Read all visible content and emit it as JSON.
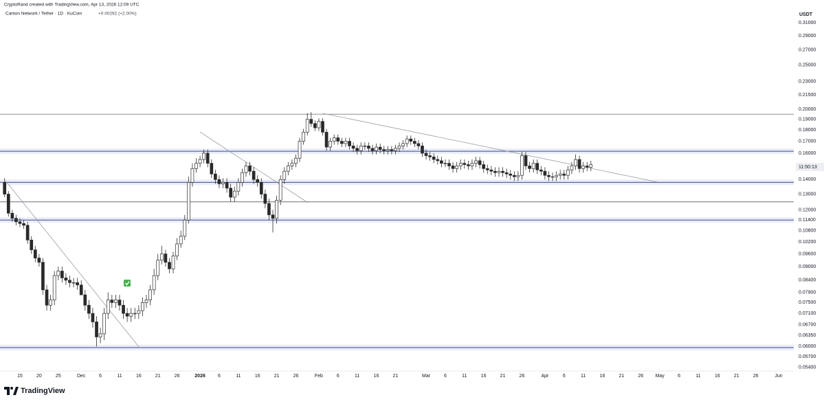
{
  "chart_data": {
    "type": "candlestick",
    "attribution": "CryptoRand created with TradingView.com, Apr 13, 2026 12:09 UTC",
    "title": "Canton Network / Tether · 1D · KuCoin",
    "change": "+0.00292 (+2.00%)",
    "y_label": "USDT",
    "countdown": "11:50:13",
    "brand": "TradingView",
    "log_scale": true,
    "ylim": [
      0.053,
      0.348
    ],
    "yticks": [
      {
        "value": 0.31,
        "label": "0.31000"
      },
      {
        "value": 0.29,
        "label": "0.29000"
      },
      {
        "value": 0.27,
        "label": "0.27000"
      },
      {
        "value": 0.25,
        "label": "0.25000"
      },
      {
        "value": 0.23,
        "label": "0.23000"
      },
      {
        "value": 0.215,
        "label": "0.21500"
      },
      {
        "value": 0.2,
        "label": "0.20000"
      },
      {
        "value": 0.19,
        "label": "0.19000"
      },
      {
        "value": 0.18,
        "label": "0.18000"
      },
      {
        "value": 0.17,
        "label": "0.17000"
      },
      {
        "value": 0.16,
        "label": "0.16000"
      },
      {
        "value": 0.14,
        "label": "0.14000"
      },
      {
        "value": 0.13,
        "label": "0.13000"
      },
      {
        "value": 0.12,
        "label": "0.12000"
      },
      {
        "value": 0.114,
        "label": "0.11400"
      },
      {
        "value": 0.108,
        "label": "0.10800"
      },
      {
        "value": 0.102,
        "label": "0.10200"
      },
      {
        "value": 0.096,
        "label": "0.09600"
      },
      {
        "value": 0.09,
        "label": "0.09000"
      },
      {
        "value": 0.084,
        "label": "0.08400"
      },
      {
        "value": 0.079,
        "label": "0.07900"
      },
      {
        "value": 0.075,
        "label": "0.07500"
      },
      {
        "value": 0.071,
        "label": "0.07100"
      },
      {
        "value": 0.067,
        "label": "0.06700"
      },
      {
        "value": 0.0635,
        "label": "0.06350"
      },
      {
        "value": 0.06,
        "label": "0.06000"
      },
      {
        "value": 0.057,
        "label": "0.05700"
      },
      {
        "value": 0.054,
        "label": "0.05400"
      }
    ],
    "up_color": "#ffffff",
    "down_color": "#2a2a2a",
    "levels": [
      {
        "value": 0.195,
        "color": "#8a8d96",
        "shaded": false
      },
      {
        "value": 0.1616,
        "color": "#3c4690",
        "shaded": true
      },
      {
        "value": 0.138,
        "color": "#3c4690",
        "shaded": true
      },
      {
        "value": 0.125,
        "color": "#6b6e78",
        "shaded": false
      },
      {
        "value": 0.114,
        "color": "#3c4690",
        "shaded": true
      },
      {
        "value": 0.0597,
        "color": "#3c4690",
        "shaded": true
      }
    ],
    "categories": [
      null,
      null,
      null,
      null,
      "15",
      null,
      null,
      null,
      null,
      "20",
      null,
      null,
      null,
      null,
      "25",
      null,
      null,
      null,
      null,
      null,
      "Dec",
      null,
      null,
      null,
      null,
      "6",
      null,
      null,
      null,
      null,
      "11",
      null,
      null,
      null,
      null,
      "16",
      null,
      null,
      null,
      null,
      "21",
      null,
      null,
      null,
      null,
      "26",
      null,
      null,
      null,
      null,
      null,
      "2026",
      null,
      null,
      null,
      null,
      "6",
      null,
      null,
      null,
      null,
      "11",
      null,
      null,
      null,
      null,
      "16",
      null,
      null,
      null,
      null,
      "21",
      null,
      null,
      null,
      null,
      "26",
      null,
      null,
      null,
      null,
      null,
      "Feb",
      null,
      null,
      null,
      null,
      "6",
      null,
      null,
      null,
      null,
      "11",
      null,
      null,
      null,
      null,
      "16",
      null,
      null,
      null,
      null,
      "21",
      null,
      null,
      null,
      null,
      null,
      null,
      null,
      "Mar",
      null,
      null,
      null,
      null,
      "6",
      null,
      null,
      null,
      null,
      "11",
      null,
      null,
      null,
      null,
      "16",
      null,
      null,
      null,
      null,
      "21",
      null,
      null,
      null,
      null,
      "26",
      null,
      null,
      null,
      null,
      null,
      "Apr",
      null,
      null,
      null,
      null,
      "6",
      null,
      null,
      null,
      null,
      "11",
      null,
      null,
      null,
      null,
      "16",
      null,
      null,
      null,
      null,
      "21",
      null,
      null,
      null,
      null,
      "26",
      null,
      null,
      null,
      null,
      "May",
      null,
      null,
      null,
      null,
      "6",
      null,
      null,
      null,
      null,
      "11",
      null,
      null,
      null,
      null,
      "16",
      null,
      null,
      null,
      null,
      "21",
      null,
      null,
      null,
      null,
      "26",
      null,
      null,
      null,
      null,
      null,
      "Jun"
    ],
    "open": [
      0.138,
      0.13,
      0.118,
      0.115,
      0.113,
      0.112,
      0.111,
      0.103,
      0.098,
      0.094,
      0.092,
      0.08,
      0.074,
      0.076,
      0.086,
      0.088,
      0.085,
      0.084,
      0.083,
      0.083,
      0.082,
      0.078,
      0.074,
      0.071,
      0.068,
      0.063,
      0.064,
      0.071,
      0.076,
      0.075,
      0.076,
      0.074,
      0.071,
      0.07,
      0.071,
      0.071,
      0.072,
      0.075,
      0.076,
      0.08,
      0.086,
      0.093,
      0.096,
      0.092,
      0.089,
      0.095,
      0.101,
      0.105,
      0.114,
      0.138,
      0.148,
      0.152,
      0.155,
      0.16,
      0.152,
      0.144,
      0.14,
      0.137,
      0.138,
      0.134,
      0.128,
      0.132,
      0.138,
      0.145,
      0.15,
      0.146,
      0.14,
      0.138,
      0.13,
      0.124,
      0.117,
      0.115,
      0.126,
      0.14,
      0.146,
      0.15,
      0.152,
      0.156,
      0.17,
      0.178,
      0.19,
      0.186,
      0.182,
      0.188,
      0.178,
      0.165,
      0.17,
      0.173,
      0.17,
      0.168,
      0.17,
      0.166,
      0.164,
      0.162,
      0.166,
      0.166,
      0.164,
      0.162,
      0.165,
      0.163,
      0.162,
      0.163,
      0.162,
      0.164,
      0.166,
      0.168,
      0.172,
      0.17,
      0.168,
      0.166,
      0.16,
      0.158,
      0.157,
      0.155,
      0.154,
      0.152,
      0.152,
      0.15,
      0.148,
      0.15,
      0.152,
      0.151,
      0.15,
      0.152,
      0.154,
      0.151,
      0.148,
      0.147,
      0.146,
      0.145,
      0.146,
      0.145,
      0.144,
      0.143,
      0.142,
      0.143,
      0.158,
      0.15,
      0.148,
      0.152,
      0.147,
      0.146,
      0.143,
      0.142,
      0.142,
      0.143,
      0.144,
      0.143,
      0.147,
      0.15,
      0.155,
      0.148,
      0.15,
      0.149,
      null,
      null,
      null,
      null,
      null,
      null,
      null,
      null,
      null,
      null,
      null,
      null,
      null,
      null,
      null,
      null,
      null,
      null,
      null,
      null,
      null,
      null,
      null,
      null,
      null,
      null,
      null,
      null,
      null,
      null,
      null,
      null,
      null,
      null,
      null,
      null,
      null,
      null,
      null,
      null,
      null,
      null,
      null,
      null,
      null,
      null,
      null,
      null,
      null
    ],
    "high": [
      0.141,
      0.132,
      0.12,
      0.117,
      0.115,
      0.114,
      0.113,
      0.105,
      0.1,
      0.096,
      0.094,
      0.082,
      0.078,
      0.088,
      0.09,
      0.09,
      0.087,
      0.086,
      0.085,
      0.085,
      0.084,
      0.08,
      0.076,
      0.073,
      0.07,
      0.066,
      0.073,
      0.079,
      0.078,
      0.078,
      0.078,
      0.076,
      0.073,
      0.073,
      0.073,
      0.074,
      0.077,
      0.078,
      0.082,
      0.089,
      0.096,
      0.1,
      0.098,
      0.094,
      0.097,
      0.104,
      0.108,
      0.117,
      0.142,
      0.152,
      0.156,
      0.158,
      0.163,
      0.163,
      0.155,
      0.147,
      0.143,
      0.141,
      0.141,
      0.137,
      0.135,
      0.141,
      0.148,
      0.153,
      0.153,
      0.149,
      0.143,
      0.141,
      0.133,
      0.127,
      0.12,
      0.129,
      0.143,
      0.149,
      0.153,
      0.155,
      0.159,
      0.173,
      0.181,
      0.196,
      0.197,
      0.189,
      0.191,
      0.191,
      0.181,
      0.173,
      0.176,
      0.176,
      0.173,
      0.173,
      0.173,
      0.169,
      0.167,
      0.169,
      0.169,
      0.169,
      0.167,
      0.168,
      0.168,
      0.166,
      0.166,
      0.166,
      0.167,
      0.169,
      0.171,
      0.175,
      0.175,
      0.173,
      0.171,
      0.169,
      0.163,
      0.161,
      0.16,
      0.158,
      0.157,
      0.155,
      0.155,
      0.153,
      0.153,
      0.155,
      0.155,
      0.154,
      0.155,
      0.157,
      0.157,
      0.154,
      0.151,
      0.15,
      0.149,
      0.149,
      0.149,
      0.148,
      0.147,
      0.146,
      0.146,
      0.161,
      0.161,
      0.153,
      0.155,
      0.155,
      0.15,
      0.149,
      0.146,
      0.145,
      0.146,
      0.147,
      0.147,
      0.15,
      0.153,
      0.159,
      0.158,
      0.153,
      0.153,
      0.154,
      null,
      null,
      null,
      null,
      null,
      null,
      null,
      null,
      null,
      null,
      null,
      null,
      null,
      null,
      null,
      null,
      null,
      null,
      null,
      null,
      null,
      null,
      null,
      null,
      null,
      null,
      null,
      null,
      null,
      null,
      null,
      null,
      null,
      null,
      null,
      null,
      null,
      null,
      null,
      null,
      null,
      null,
      null,
      null,
      null,
      null,
      null,
      null,
      null
    ],
    "low": [
      0.128,
      0.116,
      0.113,
      0.111,
      0.11,
      0.109,
      0.101,
      0.096,
      0.092,
      0.09,
      0.078,
      0.072,
      0.072,
      0.074,
      0.084,
      0.083,
      0.082,
      0.081,
      0.081,
      0.08,
      0.08,
      0.072,
      0.069,
      0.066,
      0.06,
      0.061,
      0.062,
      0.069,
      0.073,
      0.073,
      0.072,
      0.069,
      0.068,
      0.068,
      0.069,
      0.069,
      0.07,
      0.073,
      0.074,
      0.078,
      0.084,
      0.091,
      0.09,
      0.087,
      0.087,
      0.093,
      0.099,
      0.103,
      0.112,
      0.135,
      0.145,
      0.149,
      0.152,
      0.149,
      0.141,
      0.137,
      0.134,
      0.134,
      0.131,
      0.125,
      0.125,
      0.129,
      0.135,
      0.142,
      0.143,
      0.137,
      0.135,
      0.127,
      0.121,
      0.114,
      0.107,
      0.112,
      0.123,
      0.137,
      0.143,
      0.147,
      0.149,
      0.153,
      0.167,
      0.175,
      0.183,
      0.179,
      0.179,
      0.175,
      0.162,
      0.162,
      0.167,
      0.167,
      0.165,
      0.165,
      0.163,
      0.161,
      0.159,
      0.159,
      0.163,
      0.161,
      0.159,
      0.159,
      0.16,
      0.159,
      0.159,
      0.159,
      0.159,
      0.161,
      0.163,
      0.165,
      0.167,
      0.165,
      0.163,
      0.157,
      0.155,
      0.154,
      0.152,
      0.151,
      0.149,
      0.149,
      0.147,
      0.145,
      0.145,
      0.147,
      0.148,
      0.147,
      0.147,
      0.149,
      0.148,
      0.145,
      0.144,
      0.143,
      0.142,
      0.142,
      0.142,
      0.141,
      0.14,
      0.139,
      0.139,
      0.14,
      0.147,
      0.145,
      0.145,
      0.144,
      0.143,
      0.14,
      0.139,
      0.139,
      0.139,
      0.14,
      0.14,
      0.14,
      0.144,
      0.147,
      0.145,
      0.145,
      0.146,
      0.146,
      null,
      null,
      null,
      null,
      null,
      null,
      null,
      null,
      null,
      null,
      null,
      null,
      null,
      null,
      null,
      null,
      null,
      null,
      null,
      null,
      null,
      null,
      null,
      null,
      null,
      null,
      null,
      null,
      null,
      null,
      null,
      null,
      null,
      null,
      null,
      null,
      null,
      null,
      null,
      null,
      null,
      null,
      null,
      null,
      null,
      null,
      null,
      null,
      null
    ],
    "close": [
      0.13,
      0.118,
      0.115,
      0.113,
      0.112,
      0.111,
      0.103,
      0.098,
      0.094,
      0.092,
      0.08,
      0.074,
      0.076,
      0.086,
      0.088,
      0.085,
      0.084,
      0.083,
      0.083,
      0.082,
      0.078,
      0.074,
      0.071,
      0.068,
      0.063,
      0.064,
      0.071,
      0.076,
      0.075,
      0.076,
      0.074,
      0.071,
      0.07,
      0.071,
      0.071,
      0.072,
      0.075,
      0.076,
      0.08,
      0.086,
      0.093,
      0.096,
      0.092,
      0.089,
      0.095,
      0.101,
      0.105,
      0.114,
      0.138,
      0.148,
      0.152,
      0.155,
      0.16,
      0.152,
      0.144,
      0.14,
      0.137,
      0.138,
      0.134,
      0.128,
      0.132,
      0.138,
      0.145,
      0.15,
      0.146,
      0.14,
      0.138,
      0.13,
      0.124,
      0.117,
      0.115,
      0.126,
      0.14,
      0.146,
      0.15,
      0.152,
      0.156,
      0.17,
      0.178,
      0.19,
      0.186,
      0.182,
      0.188,
      0.178,
      0.165,
      0.17,
      0.173,
      0.17,
      0.168,
      0.17,
      0.166,
      0.164,
      0.162,
      0.166,
      0.166,
      0.164,
      0.162,
      0.165,
      0.163,
      0.162,
      0.163,
      0.162,
      0.164,
      0.166,
      0.168,
      0.172,
      0.17,
      0.168,
      0.166,
      0.16,
      0.158,
      0.157,
      0.155,
      0.154,
      0.152,
      0.152,
      0.15,
      0.148,
      0.15,
      0.152,
      0.151,
      0.15,
      0.152,
      0.154,
      0.151,
      0.148,
      0.147,
      0.146,
      0.145,
      0.146,
      0.145,
      0.144,
      0.143,
      0.142,
      0.143,
      0.158,
      0.15,
      0.148,
      0.152,
      0.147,
      0.146,
      0.143,
      0.142,
      0.142,
      0.143,
      0.144,
      0.143,
      0.147,
      0.15,
      0.155,
      0.148,
      0.15,
      0.149,
      0.151,
      null,
      null,
      null,
      null,
      null,
      null,
      null,
      null,
      null,
      null,
      null,
      null,
      null,
      null,
      null,
      null,
      null,
      null,
      null,
      null,
      null,
      null,
      null,
      null,
      null,
      null,
      null,
      null,
      null,
      null,
      null,
      null,
      null,
      null,
      null,
      null,
      null,
      null,
      null,
      null,
      null,
      null,
      null,
      null,
      null,
      null,
      null,
      null,
      null
    ]
  }
}
